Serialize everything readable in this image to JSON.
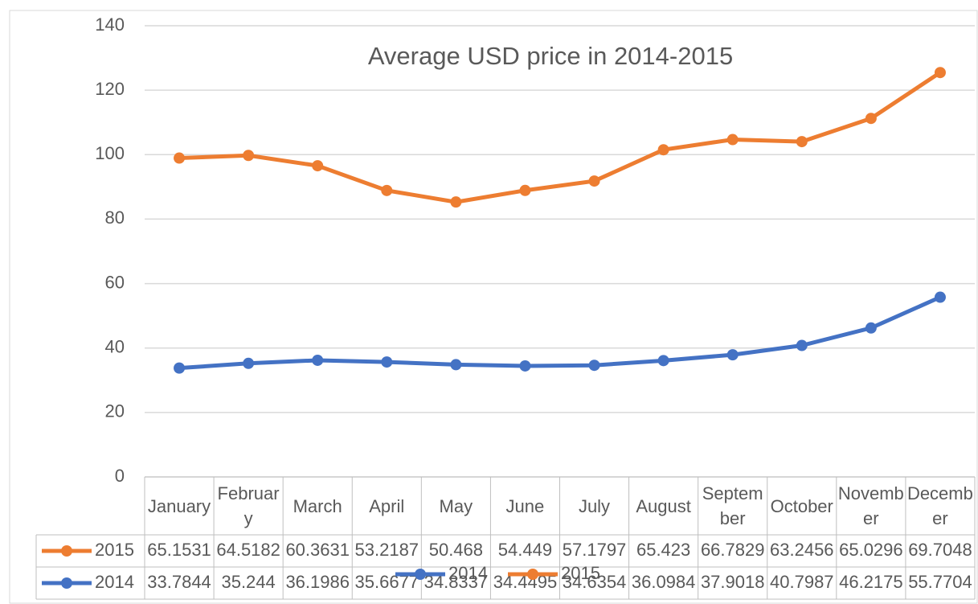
{
  "chart_data": {
    "type": "line",
    "stacked": true,
    "title": "Average USD price in 2014-2015",
    "categories": [
      "January",
      "February",
      "March",
      "April",
      "May",
      "June",
      "July",
      "August",
      "September",
      "October",
      "November",
      "December"
    ],
    "series": [
      {
        "name": "2014",
        "color": "#4472c4",
        "values": [
          33.7844,
          35.244,
          36.1986,
          35.6677,
          34.8337,
          34.4495,
          34.6354,
          36.0984,
          37.9018,
          40.7987,
          46.2175,
          55.7704
        ]
      },
      {
        "name": "2015",
        "color": "#ed7d31",
        "values": [
          65.1531,
          64.5182,
          60.3631,
          53.2187,
          50.468,
          54.449,
          57.1797,
          65.423,
          66.7829,
          63.2456,
          65.0296,
          69.7048
        ]
      }
    ],
    "ylim": [
      0,
      140
    ],
    "yticks": [
      0,
      20,
      40,
      60,
      80,
      100,
      120,
      140
    ],
    "grid": true,
    "data_table": true,
    "legend": "bottom"
  }
}
